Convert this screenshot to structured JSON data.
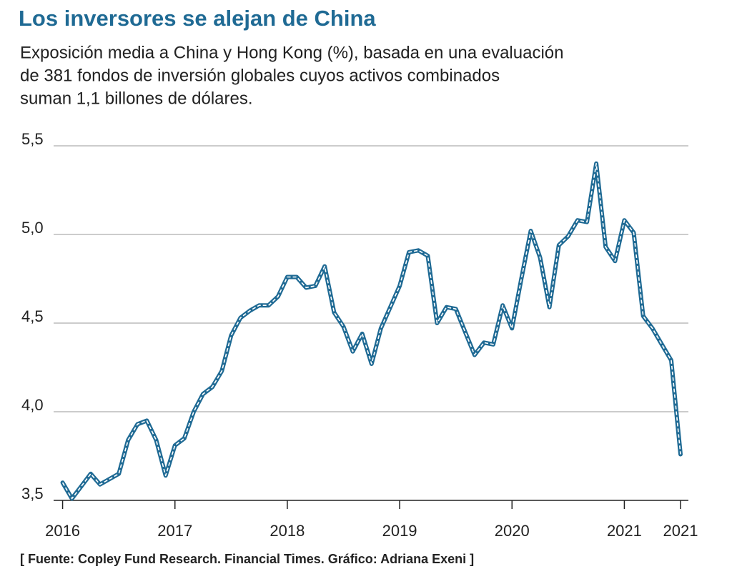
{
  "chart_data": {
    "type": "line",
    "title": "Los inversores se alejan de China",
    "subtitle": [
      "Exposición media a China y Hong Kong (%), basada en una evaluación",
      "de 381 fondos de inversión globales cuyos activos combinados",
      "suman 1,1 billones de dólares."
    ],
    "source": "[ Fuente: Copley Fund Research. Financial Times. Gráfico: Adriana Exeni ]",
    "x": [
      2016,
      2016.083,
      2016.167,
      2016.25,
      2016.333,
      2016.417,
      2016.5,
      2016.583,
      2016.667,
      2016.75,
      2016.833,
      2016.917,
      2017,
      2017.083,
      2017.167,
      2017.25,
      2017.333,
      2017.417,
      2017.5,
      2017.583,
      2017.667,
      2017.75,
      2017.833,
      2017.917,
      2018,
      2018.083,
      2018.167,
      2018.25,
      2018.333,
      2018.417,
      2018.5,
      2018.583,
      2018.667,
      2018.75,
      2018.833,
      2018.917,
      2019,
      2019.083,
      2019.167,
      2019.25,
      2019.333,
      2019.417,
      2019.5,
      2019.583,
      2019.667,
      2019.75,
      2019.833,
      2019.917,
      2020,
      2020.083,
      2020.167,
      2020.25,
      2020.333,
      2020.417,
      2020.5,
      2020.583,
      2020.667,
      2020.75,
      2020.833,
      2020.917,
      2021,
      2021.083,
      2021.167,
      2021.25,
      2021.333,
      2021.417,
      2021.5
    ],
    "series": [
      {
        "name": "Exposición media",
        "color": "#1f6a94",
        "values": [
          3.6,
          3.51,
          3.58,
          3.65,
          3.59,
          3.62,
          3.65,
          3.84,
          3.93,
          3.95,
          3.84,
          3.64,
          3.81,
          3.85,
          4.0,
          4.1,
          4.14,
          4.23,
          4.43,
          4.53,
          4.57,
          4.6,
          4.6,
          4.65,
          4.76,
          4.76,
          4.7,
          4.71,
          4.82,
          4.56,
          4.48,
          4.34,
          4.44,
          4.27,
          4.47,
          4.59,
          4.71,
          4.9,
          4.91,
          4.88,
          4.5,
          4.59,
          4.58,
          4.45,
          4.32,
          4.39,
          4.38,
          4.6,
          4.47,
          4.75,
          5.02,
          4.87,
          4.59,
          4.94,
          4.99,
          5.08,
          5.07,
          5.4,
          4.93,
          4.85,
          5.08,
          5.01,
          4.54,
          4.47,
          4.38,
          4.29,
          3.76
        ]
      }
    ],
    "xlim": [
      2015.92,
      2021.57
    ],
    "ylim": [
      3.5,
      5.5
    ],
    "xticks": [
      2016,
      2017,
      2018,
      2019,
      2020,
      2021,
      {
        "value": 2021.5,
        "label": "2021"
      }
    ],
    "yticks": [
      {
        "value": 3.5,
        "label": "3,5"
      },
      {
        "value": 4.0,
        "label": "4,0"
      },
      {
        "value": 4.5,
        "label": "4,5"
      },
      {
        "value": 5.0,
        "label": "5,0"
      },
      {
        "value": 5.5,
        "label": "5,5"
      }
    ],
    "grid": true
  }
}
